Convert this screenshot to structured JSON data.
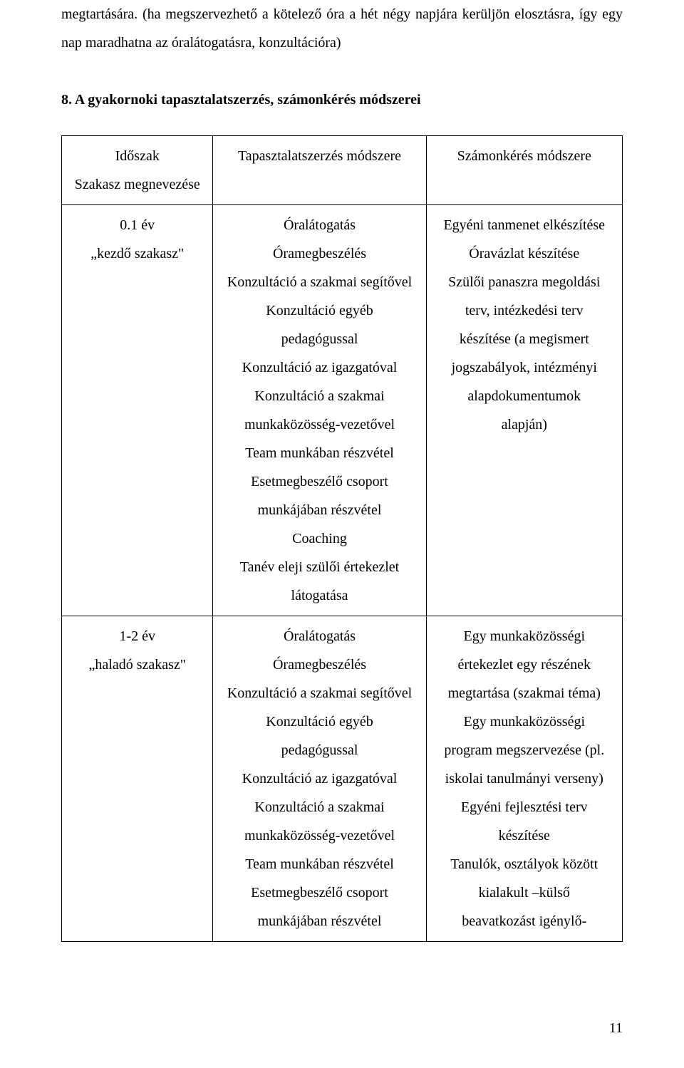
{
  "paragraph1": "megtartására. (ha megszervezhető a kötelező óra a hét négy napjára kerüljön elosztásra, így egy nap maradhatna az óralátogatásra, konzultációra)",
  "heading": "8. A gyakornoki tapasztalatszerzés, számonkérés módszerei",
  "table": {
    "header": {
      "col1_line1": "Időszak",
      "col1_line2": "Szakasz megnevezése",
      "col2": "Tapasztalatszerzés módszere",
      "col3": "Számonkérés módszere"
    },
    "row1": {
      "col1_line1": "0.1 év",
      "col1_line2": "„kezdő szakasz\"",
      "col2_lines": [
        "Óralátogatás",
        "Óramegbeszélés",
        "Konzultáció a szakmai segítővel",
        "Konzultáció egyéb",
        "pedagógussal",
        "Konzultáció az igazgatóval",
        "Konzultáció a szakmai",
        "munkaközösség-vezetővel",
        "Team munkában részvétel",
        "Esetmegbeszélő csoport",
        "munkájában részvétel",
        "Coaching",
        "Tanév eleji szülői értekezlet",
        "látogatása"
      ],
      "col3_lines": [
        "Egyéni tanmenet elkészítése",
        "Óravázlat készítése",
        "Szülői panaszra megoldási",
        "terv, intézkedési terv",
        "készítése (a megismert",
        "jogszabályok, intézményi",
        "alapdokumentumok",
        "alapján)"
      ]
    },
    "row2": {
      "col1_line1": "1-2 év",
      "col1_line2": "„haladó szakasz\"",
      "col2_lines": [
        "Óralátogatás",
        "Óramegbeszélés",
        "Konzultáció a szakmai segítővel",
        "Konzultáció egyéb",
        "pedagógussal",
        "Konzultáció az igazgatóval",
        "Konzultáció a szakmai",
        "munkaközösség-vezetővel",
        "Team munkában részvétel",
        "Esetmegbeszélő csoport",
        "munkájában részvétel"
      ],
      "col3_lines": [
        "Egy munkaközösségi",
        "értekezlet egy részének",
        "megtartása (szakmai téma)",
        "Egy munkaközösségi",
        "program megszervezése (pl.",
        "iskolai tanulmányi verseny)",
        "Egyéni fejlesztési terv",
        "készítése",
        "Tanulók, osztályok között",
        "kialakult –külső",
        "beavatkozást igénylő-"
      ]
    }
  },
  "pageNumber": "11"
}
